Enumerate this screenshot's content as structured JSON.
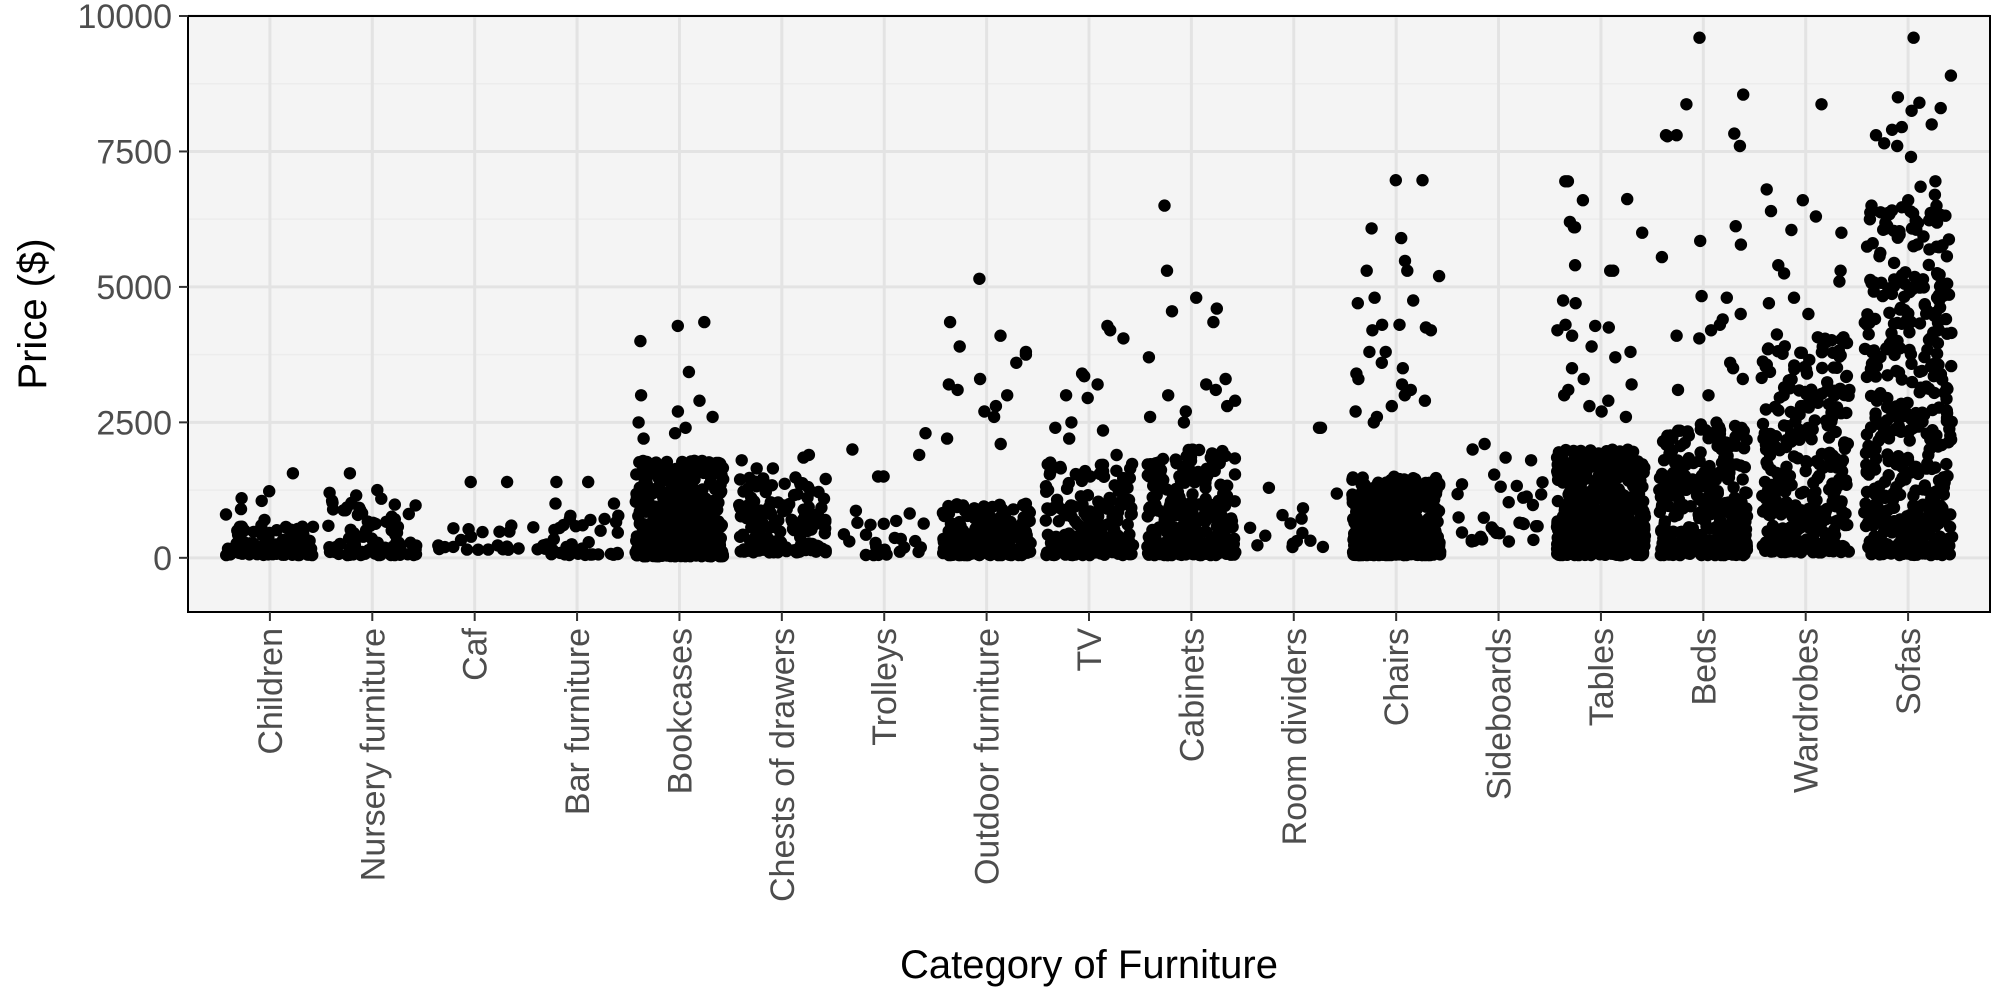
{
  "chart_data": {
    "type": "scatter",
    "title": "",
    "xlabel": "Category of Furniture",
    "ylabel": "Price ($)",
    "ylim": [
      -1000,
      10000
    ],
    "y_ticks": [
      0,
      2500,
      5000,
      7500,
      10000
    ],
    "y_tick_labels": [
      "0",
      "2500",
      "5000",
      "7500",
      "10000"
    ],
    "grid": true,
    "legend": "none",
    "jitter": true,
    "background": "#f4f4f4",
    "grid_color": "#e3e3e3",
    "point_color": "#000000",
    "categories": [
      "Children",
      "Nursery furniture",
      "Caf",
      "Bar furniture",
      "Bookcases",
      "Chests of drawers",
      "Trolleys",
      "Outdoor furniture",
      "TV",
      "Cabinets",
      "Room dividers",
      "Chairs",
      "Sideboards",
      "Tables",
      "Beds",
      "Wardrobes",
      "Sofas"
    ],
    "groups": [
      {
        "category": "Children",
        "n": 110,
        "typical_range": [
          50,
          600
        ],
        "outliers": [
          1560,
          1230,
          1100,
          1050,
          900,
          800,
          700
        ]
      },
      {
        "category": "Nursery furniture",
        "n": 80,
        "typical_range": [
          50,
          1100
        ],
        "outliers": [
          1560,
          1250,
          1200,
          1150
        ]
      },
      {
        "category": "Caf",
        "n": 20,
        "typical_range": [
          150,
          600
        ],
        "outliers": [
          1400,
          1400
        ]
      },
      {
        "category": "Bar furniture",
        "n": 40,
        "typical_range": [
          50,
          800
        ],
        "outliers": [
          1400,
          1400,
          1000,
          1000
        ]
      },
      {
        "category": "Bookcases",
        "n": 520,
        "typical_range": [
          30,
          1800
        ],
        "outliers": [
          4350,
          4280,
          4000,
          3430,
          3000,
          2900,
          2700,
          2600,
          2500,
          2400,
          2300,
          2200
        ]
      },
      {
        "category": "Chests of drawers",
        "n": 150,
        "typical_range": [
          100,
          1500
        ],
        "outliers": [
          1900,
          1850,
          1800,
          1650,
          1650
        ]
      },
      {
        "category": "Trolleys",
        "n": 25,
        "typical_range": [
          50,
          1000
        ],
        "outliers": [
          2300,
          2000,
          1900,
          1500,
          1500
        ]
      },
      {
        "category": "Outdoor furniture",
        "n": 200,
        "typical_range": [
          50,
          1000
        ],
        "outliers": [
          5150,
          4350,
          4100,
          3900,
          3800,
          3750,
          3600,
          3300,
          3200,
          3100,
          3000,
          2800,
          2700,
          2600,
          2200,
          2100
        ]
      },
      {
        "category": "TV",
        "n": 190,
        "typical_range": [
          50,
          1900
        ],
        "outliers": [
          4280,
          4200,
          4050,
          3400,
          3350,
          3200,
          3000,
          2950,
          2500,
          2400,
          2350,
          2200
        ]
      },
      {
        "category": "Cabinets",
        "n": 290,
        "typical_range": [
          50,
          2000
        ],
        "outliers": [
          6500,
          5300,
          4800,
          4600,
          4550,
          4350,
          3700,
          3300,
          3200,
          3100,
          3000,
          2900,
          2800,
          2700,
          2600,
          2500
        ]
      },
      {
        "category": "Room dividers",
        "n": 15,
        "typical_range": [
          200,
          1300
        ],
        "outliers": [
          2400,
          2400
        ]
      },
      {
        "category": "Chairs",
        "n": 480,
        "typical_range": [
          50,
          1500
        ],
        "outliers": [
          6970,
          6970,
          6080,
          5900,
          5480,
          5300,
          5300,
          5200,
          4800,
          4750,
          4700,
          4300,
          4300,
          4250,
          4200,
          4200,
          3800,
          3800,
          3600,
          3500,
          3400,
          3300,
          3200,
          3100,
          3000,
          2900,
          2800,
          2700,
          2600,
          2500
        ]
      },
      {
        "category": "Sideboards",
        "n": 30,
        "typical_range": [
          300,
          1600
        ],
        "outliers": [
          2100,
          2000,
          1850,
          1800
        ]
      },
      {
        "category": "Tables",
        "n": 560,
        "typical_range": [
          50,
          2000
        ],
        "outliers": [
          6950,
          6950,
          6620,
          6600,
          6200,
          6100,
          6100,
          6000,
          5400,
          5300,
          5300,
          4750,
          4700,
          4300,
          4280,
          4250,
          4200,
          4100,
          3900,
          3800,
          3700,
          3500,
          3300,
          3200,
          3100,
          3000,
          2900,
          2800,
          2700,
          2600
        ]
      },
      {
        "category": "Beds",
        "n": 340,
        "typical_range": [
          50,
          2500
        ],
        "outliers": [
          9600,
          8550,
          8370,
          7830,
          7800,
          7800,
          7780,
          7600,
          6120,
          5850,
          5780,
          5550,
          4830,
          4800,
          4500,
          4400,
          4300,
          4200,
          4100,
          4050,
          3600,
          3500,
          3300,
          3100,
          3000
        ]
      },
      {
        "category": "Wardrobes",
        "n": 330,
        "typical_range": [
          100,
          4200
        ],
        "outliers": [
          8370,
          6800,
          6600,
          6400,
          6300,
          6050,
          6000,
          5400,
          5300,
          5250,
          5100,
          4800,
          4700,
          4500
        ]
      },
      {
        "category": "Sofas",
        "n": 450,
        "typical_range": [
          50,
          6500
        ],
        "outliers": [
          9600,
          8900,
          8500,
          8400,
          8300,
          8250,
          8000,
          7950,
          7900,
          7800,
          7650,
          7600,
          7400,
          6950,
          6850,
          6700,
          6600,
          6500
        ]
      }
    ]
  }
}
